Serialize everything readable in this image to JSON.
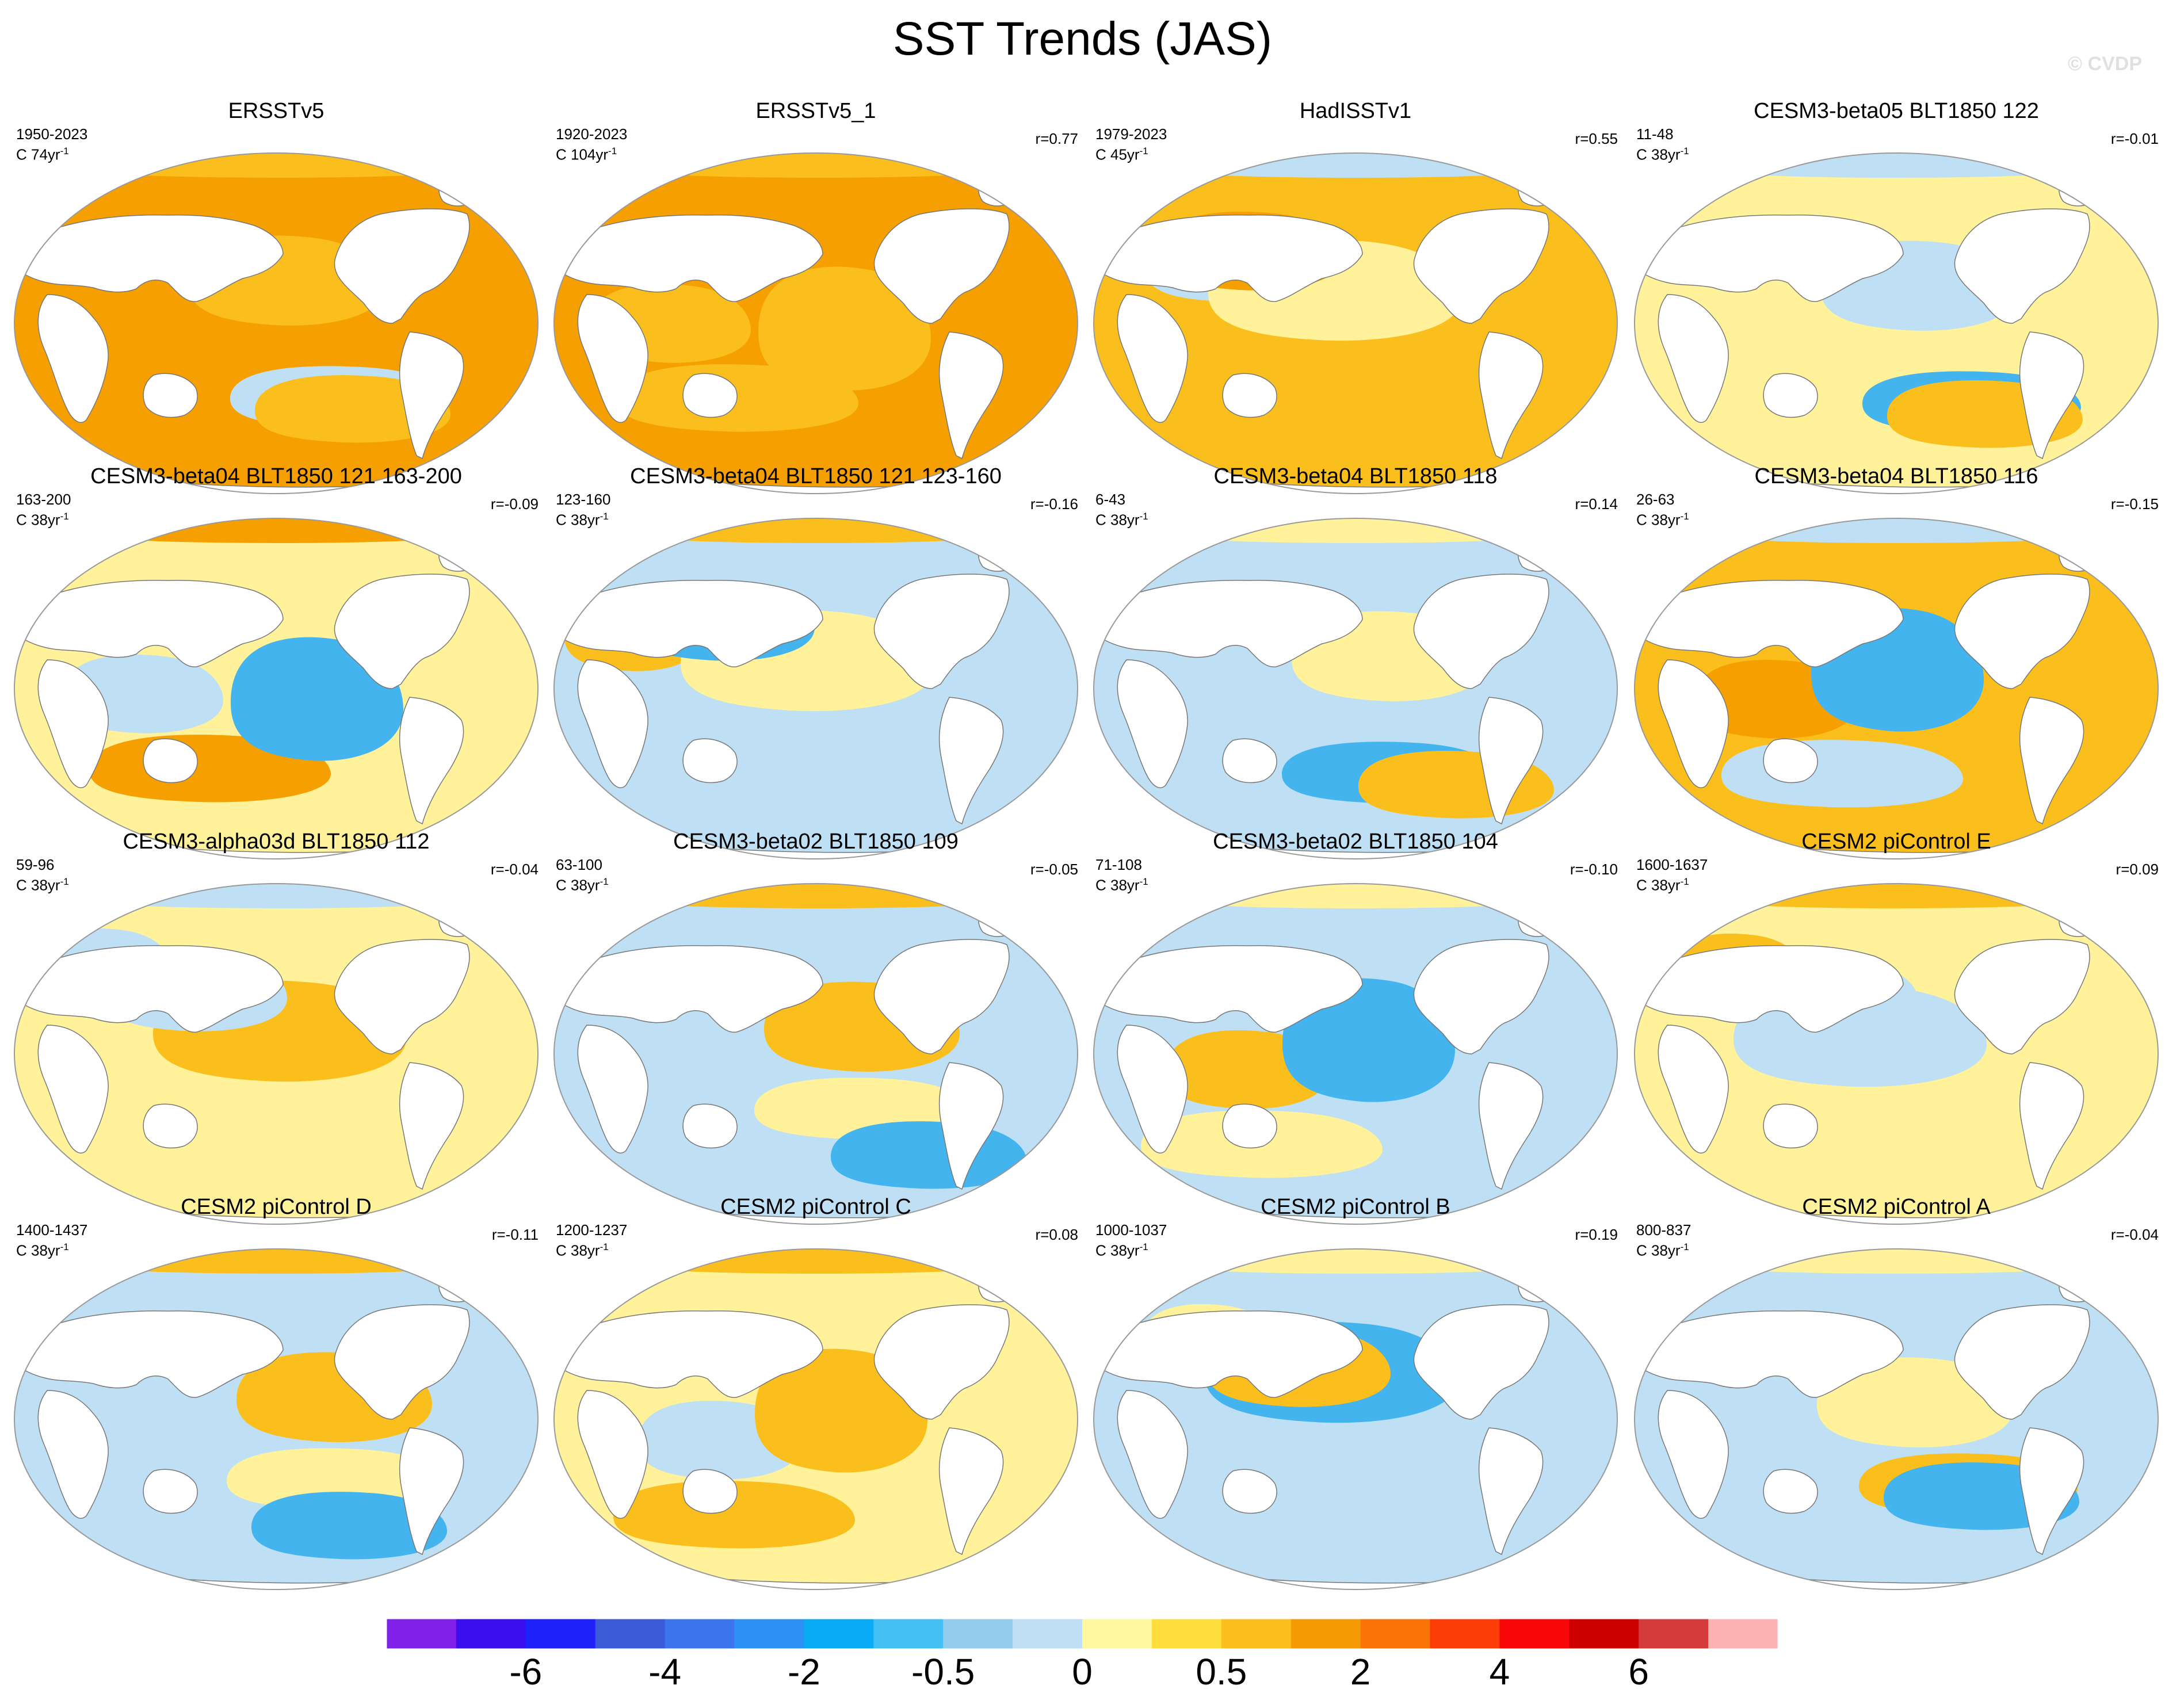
{
  "title": "SST Trends (JAS)",
  "watermark": "© CVDP",
  "colors": {
    "ocean_warm_strong": "#f5a000",
    "ocean_warm": "#fbbf1d",
    "ocean_light_warm": "#fff29a",
    "ocean_light_cool": "#bfe0f4",
    "ocean_cool": "#44b4ee",
    "land": "#ffffff",
    "coast": "#777777"
  },
  "panels": [
    {
      "title": "ERSSTv5",
      "years": "1950-2023",
      "units_prefix": "C 74yr",
      "units_exp": "-1",
      "r": "",
      "base": "ocean_warm_strong",
      "patch1": "ocean_warm",
      "patch2": "ocean_light_cool",
      "patch3": "ocean_warm"
    },
    {
      "title": "ERSSTv5_1",
      "years": "1920-2023",
      "units_prefix": "C 104yr",
      "units_exp": "-1",
      "r": "r=0.77",
      "base": "ocean_warm_strong",
      "patch1": "ocean_warm",
      "patch2": "ocean_warm",
      "patch3": "ocean_warm"
    },
    {
      "title": "HadISSTv1",
      "years": "1979-2023",
      "units_prefix": "C 45yr",
      "units_exp": "-1",
      "r": "r=0.55",
      "base": "ocean_warm",
      "patch1": "ocean_light_cool",
      "patch2": "ocean_light_warm",
      "patch3": "ocean_warm_strong"
    },
    {
      "title": "CESM3-beta05 BLT1850 122",
      "years": "11-48",
      "units_prefix": "C 38yr",
      "units_exp": "-1",
      "r": "r=-0.01",
      "base": "ocean_light_warm",
      "patch1": "ocean_light_cool",
      "patch2": "ocean_cool",
      "patch3": "ocean_warm"
    },
    {
      "title": "CESM3-beta04 BLT1850 121 163-200",
      "years": "163-200",
      "units_prefix": "C 38yr",
      "units_exp": "-1",
      "r": "r=-0.09",
      "base": "ocean_light_warm",
      "patch1": "ocean_warm_strong",
      "patch2": "ocean_light_cool",
      "patch3": "ocean_cool"
    },
    {
      "title": "CESM3-beta04 BLT1850 121 123-160",
      "years": "123-160",
      "units_prefix": "C 38yr",
      "units_exp": "-1",
      "r": "r=-0.16",
      "base": "ocean_light_cool",
      "patch1": "ocean_warm",
      "patch2": "ocean_light_warm",
      "patch3": "ocean_cool"
    },
    {
      "title": "CESM3-beta04 BLT1850 118",
      "years": "6-43",
      "units_prefix": "C 38yr",
      "units_exp": "-1",
      "r": "r=0.14",
      "base": "ocean_light_cool",
      "patch1": "ocean_light_warm",
      "patch2": "ocean_cool",
      "patch3": "ocean_warm"
    },
    {
      "title": "CESM3-beta04 BLT1850 116",
      "years": "26-63",
      "units_prefix": "C 38yr",
      "units_exp": "-1",
      "r": "r=-0.15",
      "base": "ocean_warm",
      "patch1": "ocean_light_cool",
      "patch2": "ocean_warm_strong",
      "patch3": "ocean_cool"
    },
    {
      "title": "CESM3-alpha03d BLT1850 112",
      "years": "59-96",
      "units_prefix": "C 38yr",
      "units_exp": "-1",
      "r": "r=-0.04",
      "base": "ocean_light_warm",
      "patch1": "ocean_light_cool",
      "patch2": "ocean_warm",
      "patch3": "ocean_light_cool"
    },
    {
      "title": "CESM3-beta02 BLT1850 109",
      "years": "63-100",
      "units_prefix": "C 38yr",
      "units_exp": "-1",
      "r": "r=-0.05",
      "base": "ocean_light_cool",
      "patch1": "ocean_warm",
      "patch2": "ocean_light_warm",
      "patch3": "ocean_cool"
    },
    {
      "title": "CESM3-beta02 BLT1850 104",
      "years": "71-108",
      "units_prefix": "C 38yr",
      "units_exp": "-1",
      "r": "r=-0.10",
      "base": "ocean_light_cool",
      "patch1": "ocean_light_warm",
      "patch2": "ocean_warm",
      "patch3": "ocean_cool"
    },
    {
      "title": "CESM2 piControl E",
      "years": "1600-1637",
      "units_prefix": "C 38yr",
      "units_exp": "-1",
      "r": "r=0.09",
      "base": "ocean_light_warm",
      "patch1": "ocean_warm",
      "patch2": "ocean_light_cool",
      "patch3": "ocean_light_cool"
    },
    {
      "title": "CESM2 piControl D",
      "years": "1400-1437",
      "units_prefix": "C 38yr",
      "units_exp": "-1",
      "r": "r=-0.11",
      "base": "ocean_light_cool",
      "patch1": "ocean_warm",
      "patch2": "ocean_light_warm",
      "patch3": "ocean_cool"
    },
    {
      "title": "CESM2 piControl C",
      "years": "1200-1237",
      "units_prefix": "C 38yr",
      "units_exp": "-1",
      "r": "r=0.08",
      "base": "ocean_light_warm",
      "patch1": "ocean_warm",
      "patch2": "ocean_light_cool",
      "patch3": "ocean_warm"
    },
    {
      "title": "CESM2 piControl B",
      "years": "1000-1037",
      "units_prefix": "C 38yr",
      "units_exp": "-1",
      "r": "r=0.19",
      "base": "ocean_light_cool",
      "patch1": "ocean_light_warm",
      "patch2": "ocean_cool",
      "patch3": "ocean_warm"
    },
    {
      "title": "CESM2 piControl A",
      "years": "800-837",
      "units_prefix": "C 38yr",
      "units_exp": "-1",
      "r": "r=-0.04",
      "base": "ocean_light_cool",
      "patch1": "ocean_light_warm",
      "patch2": "ocean_warm",
      "patch3": "ocean_cool"
    }
  ],
  "colorbar": {
    "colors": [
      "#8020e8",
      "#3a10f0",
      "#1c22f8",
      "#3a5ad8",
      "#3c74ee",
      "#2f91f6",
      "#08acf4",
      "#42c0f4",
      "#94ceee",
      "#bfe0f4",
      "#fff8a0",
      "#fedd3c",
      "#fbbf1d",
      "#f59a05",
      "#fb7306",
      "#fb3c06",
      "#f70707",
      "#cf0000",
      "#d53b3b",
      "#fdb2b2"
    ],
    "labels": [
      "-6",
      "-4",
      "-2",
      "-0.5",
      "0",
      "0.5",
      "2",
      "4",
      "6"
    ],
    "label_boundaries": [
      2,
      4,
      6,
      8,
      10,
      12,
      14,
      16,
      18
    ]
  }
}
